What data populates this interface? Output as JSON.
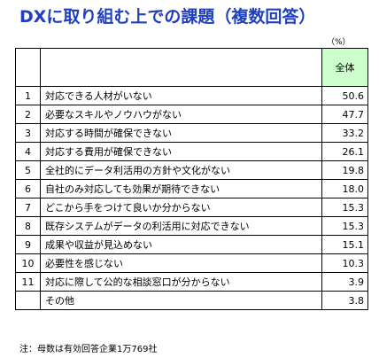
{
  "title": "DXに取り組む上での課題（複数回答）",
  "unit": "（%）",
  "note": "注：母数は有効回答企業1万769社",
  "chart_data": {
    "type": "table",
    "title": "DXに取り組む上での課題（複数回答）",
    "columns": [
      "全体"
    ],
    "unit": "%",
    "rows": [
      {
        "no": "1",
        "label": "対応できる人材がいない",
        "value": "50.6"
      },
      {
        "no": "2",
        "label": "必要なスキルやノウハウがない",
        "value": "47.7"
      },
      {
        "no": "3",
        "label": "対応する時間が確保できない",
        "value": "33.2"
      },
      {
        "no": "4",
        "label": "対応する費用が確保できない",
        "value": "26.1"
      },
      {
        "no": "5",
        "label": "全社的にデータ利活用の方針や文化がない",
        "value": "19.8"
      },
      {
        "no": "6",
        "label": "自社のみ対応しても効果が期待できない",
        "value": "18.0"
      },
      {
        "no": "7",
        "label": "どこから手をつけて良いか分からない",
        "value": "15.3"
      },
      {
        "no": "8",
        "label": "既存システムがデータの利活用に対応できない",
        "value": "15.3"
      },
      {
        "no": "9",
        "label": "成果や収益が見込めない",
        "value": "15.1"
      },
      {
        "no": "10",
        "label": "必要性を感じない",
        "value": "10.3"
      },
      {
        "no": "11",
        "label": "対応に際して公的な相談窓口が分からない",
        "value": "3.9"
      },
      {
        "no": "",
        "label": "その他",
        "value": "3.8"
      }
    ]
  }
}
